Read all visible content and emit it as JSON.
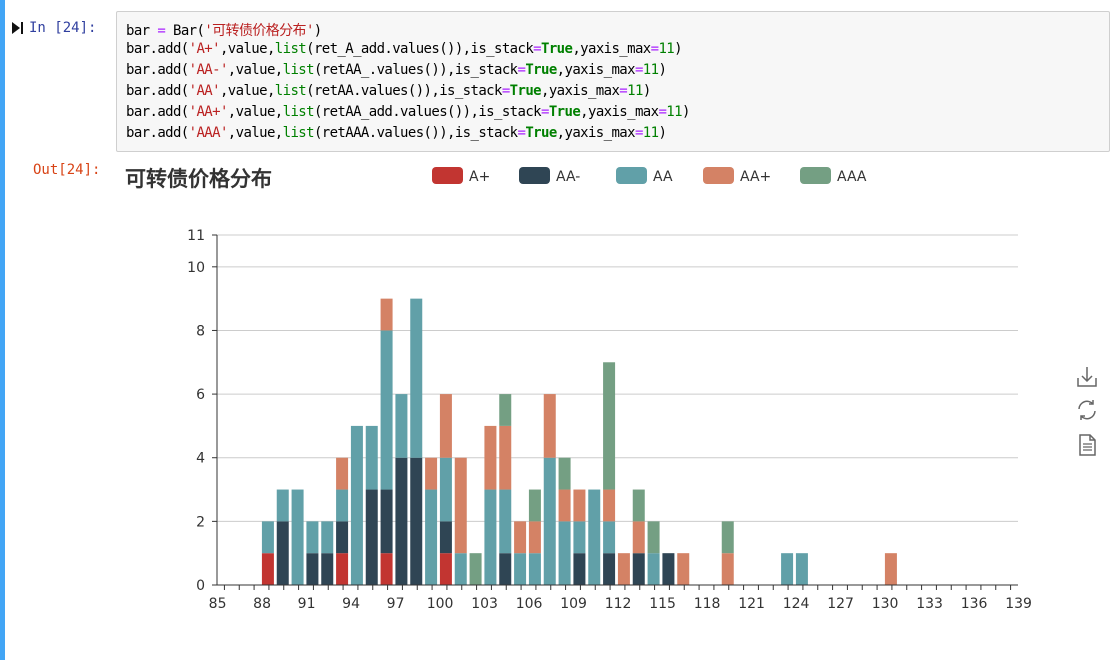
{
  "cell": {
    "in_prompt": "In  [24]:",
    "out_prompt": "Out[24]:",
    "code_lines": [
      [
        {
          "t": "bar "
        },
        {
          "t": "=",
          "c": "op"
        },
        {
          "t": " Bar("
        },
        {
          "t": "'可转债价格分布'",
          "c": "str"
        },
        {
          "t": ")"
        }
      ],
      [
        {
          "t": "bar.add("
        },
        {
          "t": "'A+'",
          "c": "str"
        },
        {
          "t": ",value,"
        },
        {
          "t": "list",
          "c": "builtin"
        },
        {
          "t": "(ret_A_add.values()),is_stack"
        },
        {
          "t": "=",
          "c": "op"
        },
        {
          "t": "True",
          "c": "kw"
        },
        {
          "t": ",yaxis_max"
        },
        {
          "t": "=",
          "c": "op"
        },
        {
          "t": "11",
          "c": "num"
        },
        {
          "t": ")"
        }
      ],
      [
        {
          "t": "bar.add("
        },
        {
          "t": "'AA-'",
          "c": "str"
        },
        {
          "t": ",value,"
        },
        {
          "t": "list",
          "c": "builtin"
        },
        {
          "t": "(retAA_.values()),is_stack"
        },
        {
          "t": "=",
          "c": "op"
        },
        {
          "t": "True",
          "c": "kw"
        },
        {
          "t": ",yaxis_max"
        },
        {
          "t": "=",
          "c": "op"
        },
        {
          "t": "11",
          "c": "num"
        },
        {
          "t": ")"
        }
      ],
      [
        {
          "t": "bar.add("
        },
        {
          "t": "'AA'",
          "c": "str"
        },
        {
          "t": ",value,"
        },
        {
          "t": "list",
          "c": "builtin"
        },
        {
          "t": "(retAA.values()),is_stack"
        },
        {
          "t": "=",
          "c": "op"
        },
        {
          "t": "True",
          "c": "kw"
        },
        {
          "t": ",yaxis_max"
        },
        {
          "t": "=",
          "c": "op"
        },
        {
          "t": "11",
          "c": "num"
        },
        {
          "t": ")"
        }
      ],
      [
        {
          "t": "bar.add("
        },
        {
          "t": "'AA+'",
          "c": "str"
        },
        {
          "t": ",value,"
        },
        {
          "t": "list",
          "c": "builtin"
        },
        {
          "t": "(retAA_add.values()),is_stack"
        },
        {
          "t": "=",
          "c": "op"
        },
        {
          "t": "True",
          "c": "kw"
        },
        {
          "t": ",yaxis_max"
        },
        {
          "t": "=",
          "c": "op"
        },
        {
          "t": "11",
          "c": "num"
        },
        {
          "t": ")"
        }
      ],
      [
        {
          "t": "bar.add("
        },
        {
          "t": "'AAA'",
          "c": "str"
        },
        {
          "t": ",value,"
        },
        {
          "t": "list",
          "c": "builtin"
        },
        {
          "t": "(retAAA.values()),is_stack"
        },
        {
          "t": "=",
          "c": "op"
        },
        {
          "t": "True",
          "c": "kw"
        },
        {
          "t": ",yaxis_max"
        },
        {
          "t": "=",
          "c": "op"
        },
        {
          "t": "11",
          "c": "num"
        },
        {
          "t": ")"
        }
      ]
    ]
  },
  "toolbox": [
    {
      "icon": "download-icon"
    },
    {
      "icon": "refresh-icon"
    },
    {
      "icon": "data-view-icon"
    }
  ],
  "chart_data": {
    "type": "bar",
    "stacked": true,
    "title": "可转债价格分布",
    "ylim": [
      0,
      11
    ],
    "yticks": [
      0,
      2,
      4,
      6,
      8,
      10,
      11
    ],
    "xlim": [
      85,
      139
    ],
    "xticks": [
      85,
      88,
      91,
      94,
      97,
      100,
      103,
      106,
      109,
      112,
      115,
      118,
      121,
      124,
      127,
      130,
      133,
      136,
      139
    ],
    "grid": true,
    "legend_position": "top-center",
    "x": [
      88,
      89,
      90,
      91,
      92,
      93,
      94,
      95,
      96,
      97,
      98,
      99,
      100,
      101,
      102,
      103,
      104,
      105,
      106,
      107,
      108,
      109,
      110,
      111,
      112,
      113,
      114,
      115,
      116,
      119,
      123,
      124,
      130
    ],
    "series": [
      {
        "name": "A+",
        "color": "#c23531",
        "values": [
          1,
          0,
          0,
          0,
          0,
          1,
          0,
          0,
          1,
          0,
          0,
          0,
          1,
          0,
          0,
          0,
          0,
          0,
          0,
          0,
          0,
          0,
          0,
          0,
          0,
          0,
          0,
          0,
          0,
          0,
          0,
          0,
          0
        ]
      },
      {
        "name": "AA-",
        "color": "#2f4554",
        "values": [
          0,
          2,
          0,
          1,
          1,
          1,
          0,
          3,
          2,
          4,
          4,
          0,
          1,
          0,
          0,
          0,
          1,
          0,
          0,
          0,
          0,
          1,
          0,
          1,
          0,
          1,
          0,
          1,
          0,
          0,
          0,
          0,
          0
        ]
      },
      {
        "name": "AA",
        "color": "#61a0a8",
        "values": [
          1,
          1,
          3,
          1,
          1,
          1,
          5,
          2,
          5,
          2,
          5,
          3,
          2,
          1,
          0,
          3,
          2,
          1,
          1,
          4,
          2,
          1,
          3,
          1,
          0,
          0,
          1,
          0,
          0,
          0,
          1,
          1,
          0
        ]
      },
      {
        "name": "AA+",
        "color": "#d48265",
        "values": [
          0,
          0,
          0,
          0,
          0,
          1,
          0,
          0,
          1,
          0,
          0,
          1,
          2,
          3,
          0,
          2,
          2,
          1,
          1,
          2,
          1,
          1,
          0,
          1,
          1,
          1,
          0,
          0,
          1,
          1,
          0,
          0,
          1
        ]
      },
      {
        "name": "AAA",
        "color": "#749f83",
        "values": [
          0,
          0,
          0,
          0,
          0,
          0,
          0,
          0,
          0,
          0,
          0,
          0,
          0,
          0,
          1,
          0,
          1,
          0,
          1,
          0,
          1,
          0,
          0,
          4,
          0,
          1,
          1,
          0,
          0,
          1,
          0,
          0,
          0
        ]
      }
    ]
  }
}
